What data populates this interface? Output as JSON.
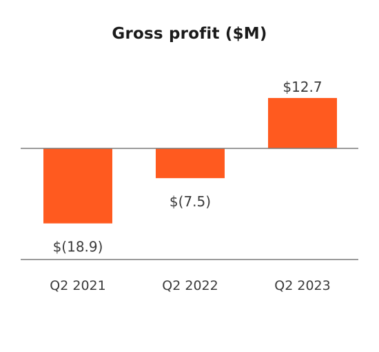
{
  "chart_data": {
    "type": "bar",
    "title": "Gross profit ($M)",
    "categories": [
      "Q2 2021",
      "Q2 2022",
      "Q2 2023"
    ],
    "values": [
      -18.9,
      -7.5,
      12.7
    ],
    "data_labels": [
      "$(18.9)",
      "$(7.5)",
      "$12.7"
    ],
    "xlabel": "",
    "ylabel": "",
    "ylim": [
      -27.6,
      12.7
    ],
    "grid": false,
    "legend": "none",
    "colors": {
      "bar": "#ff5a1f",
      "axis": "#7a7a7a",
      "text": "#3a3a3a",
      "title": "#1a1a1a"
    }
  }
}
